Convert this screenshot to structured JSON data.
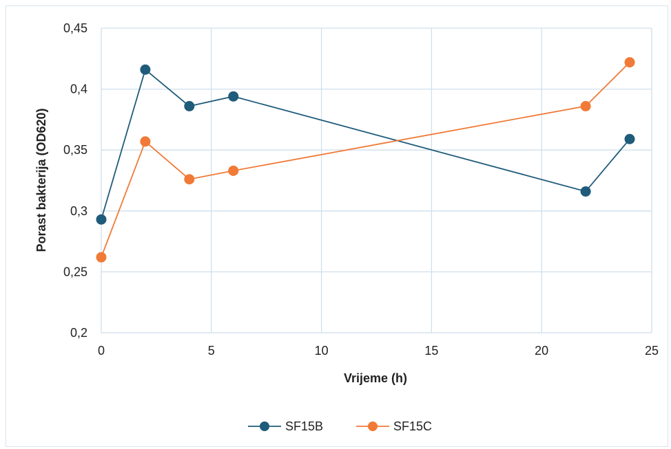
{
  "chart_data": {
    "type": "line",
    "title": "",
    "xlabel": "Vrijeme (h)",
    "ylabel": "Porast bakterija (OD620)",
    "xlim": [
      0,
      25
    ],
    "ylim": [
      0.2,
      0.45
    ],
    "x_ticks": [
      0,
      5,
      10,
      15,
      20,
      25
    ],
    "x_tick_labels": [
      "0",
      "5",
      "10",
      "15",
      "20",
      "25"
    ],
    "y_ticks": [
      0.2,
      0.25,
      0.3,
      0.35,
      0.4,
      0.45
    ],
    "y_tick_labels": [
      "0,2",
      "0,25",
      "0,3",
      "0,35",
      "0,4",
      "0,45"
    ],
    "grid": true,
    "legend_position": "bottom",
    "series": [
      {
        "name": "SF15B",
        "color": "#1f5b7a",
        "x": [
          0,
          2,
          4,
          6,
          22,
          24
        ],
        "values": [
          0.293,
          0.416,
          0.386,
          0.394,
          0.316,
          0.359
        ]
      },
      {
        "name": "SF15C",
        "color": "#f07a36",
        "x": [
          0,
          2,
          4,
          6,
          22,
          24
        ],
        "values": [
          0.262,
          0.357,
          0.326,
          0.333,
          0.386,
          0.422
        ]
      }
    ]
  }
}
